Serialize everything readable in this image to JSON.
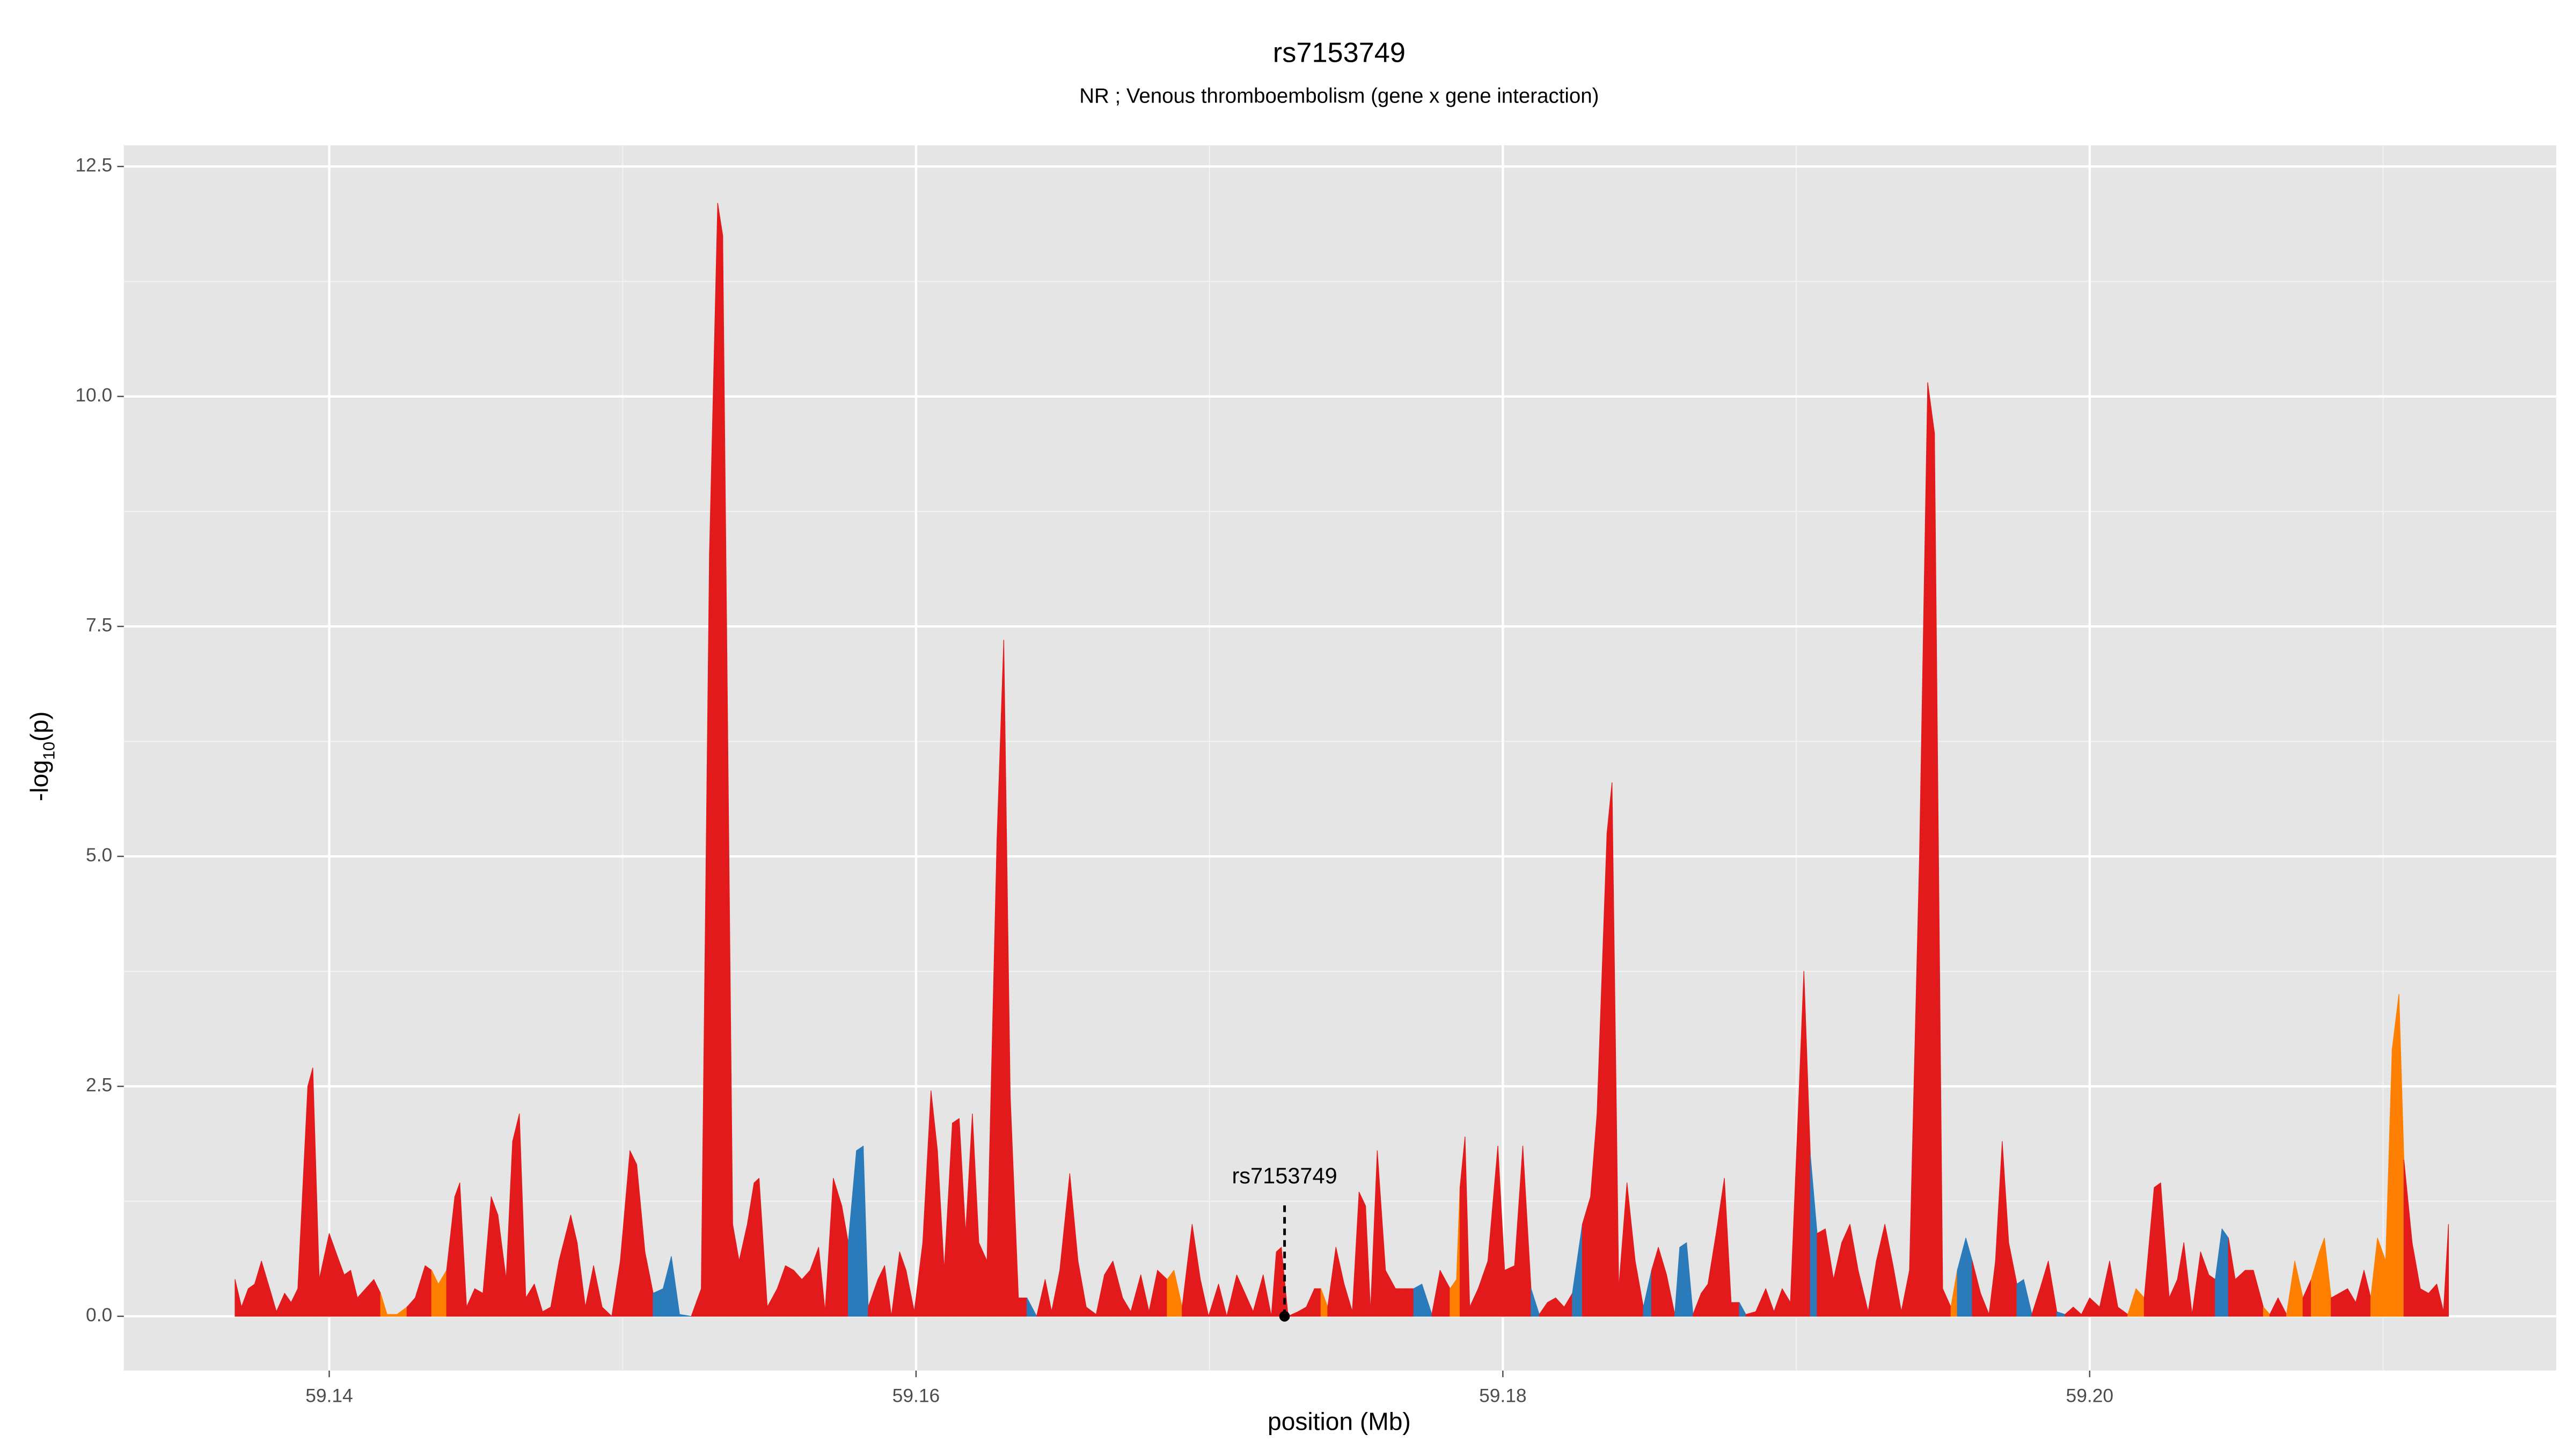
{
  "chart_data": {
    "type": "area",
    "title": "rs7153749",
    "subtitle": "NR ; Venous thromboembolism (gene x gene interaction)",
    "xlabel": "position (Mb)",
    "ylabel": [
      "-log",
      "10",
      "(p)"
    ],
    "xlim": [
      59.133,
      59.2159
    ],
    "ylim": [
      -0.59,
      12.73
    ],
    "xticks": [
      59.14,
      59.16,
      59.18,
      {
        "value": 59.2,
        "label": "59.20"
      }
    ],
    "yticks": [
      {
        "value": 0,
        "label": "0.0"
      },
      2.5,
      {
        "value": 5,
        "label": "5.0"
      },
      7.5,
      {
        "value": 10,
        "label": "10.0"
      },
      12.5
    ],
    "minor_xticks": [
      59.15,
      59.17,
      59.19,
      59.21
    ],
    "minor_yticks": [
      1.25,
      3.75,
      6.25,
      8.75,
      11.25
    ],
    "grid": true,
    "annotation": {
      "label": "rs7153749",
      "x": 59.17256,
      "y": 0
    },
    "x": [
      59.13679,
      59.13701,
      59.13724,
      59.13746,
      59.13769,
      59.13797,
      59.1382,
      59.13848,
      59.1387,
      59.13893,
      59.13927,
      59.13944,
      59.13966,
      59.14,
      59.14028,
      59.14051,
      59.14073,
      59.14096,
      59.14124,
      59.14152,
      59.14175,
      59.14197,
      59.14231,
      59.14265,
      59.14293,
      59.14327,
      59.14349,
      59.14372,
      59.144,
      59.14428,
      59.14445,
      59.14468,
      59.14496,
      59.14524,
      59.14552,
      59.14575,
      59.14603,
      59.14625,
      59.14648,
      59.1467,
      59.14699,
      59.14727,
      59.14755,
      59.14783,
      59.14823,
      59.14845,
      59.14873,
      59.14901,
      59.1493,
      59.14963,
      59.14992,
      59.15025,
      59.15048,
      59.15076,
      59.15104,
      59.15138,
      59.15166,
      59.15194,
      59.15234,
      59.15268,
      59.15296,
      59.15324,
      59.15341,
      59.15375,
      59.15397,
      59.15425,
      59.15448,
      59.15465,
      59.15493,
      59.15527,
      59.15555,
      59.15583,
      59.15611,
      59.15639,
      59.15668,
      59.1569,
      59.15718,
      59.15747,
      59.15769,
      59.15797,
      59.1582,
      59.15837,
      59.1587,
      59.15893,
      59.15916,
      59.15944,
      59.15966,
      59.15994,
      59.16023,
      59.16051,
      59.16073,
      59.16096,
      59.16124,
      59.16147,
      59.16169,
      59.16192,
      59.16214,
      59.16242,
      59.16276,
      59.16299,
      59.16321,
      59.16349,
      59.16378,
      59.16411,
      59.1644,
      59.16462,
      59.1649,
      59.16524,
      59.16552,
      59.1658,
      59.16614,
      59.16642,
      59.16671,
      59.16704,
      59.16732,
      59.16766,
      59.16794,
      59.16823,
      59.16856,
      59.16879,
      59.16907,
      59.16941,
      59.16969,
      59.16997,
      59.17031,
      59.17059,
      59.17093,
      59.17121,
      59.17149,
      59.17183,
      59.17211,
      59.17228,
      59.17245,
      59.17268,
      59.17302,
      59.1733,
      59.17358,
      59.1738,
      59.17403,
      59.17431,
      59.17459,
      59.17487,
      59.1751,
      59.17532,
      59.17549,
      59.17572,
      59.176,
      59.17634,
      59.17668,
      59.17696,
      59.17724,
      59.17758,
      59.17786,
      59.1782,
      59.17842,
      59.17854,
      59.17871,
      59.17887,
      59.17916,
      59.17949,
      59.17983,
      59.18006,
      59.1804,
      59.18068,
      59.18096,
      59.18124,
      59.18152,
      59.1818,
      59.18209,
      59.18237,
      59.18271,
      59.18299,
      59.18321,
      59.18355,
      59.18372,
      59.18395,
      59.18423,
      59.18451,
      59.18479,
      59.18507,
      59.1853,
      59.18558,
      59.18586,
      59.18603,
      59.18626,
      59.18648,
      59.18676,
      59.18699,
      59.18727,
      59.18755,
      59.18778,
      59.18806,
      59.18828,
      59.18862,
      59.18896,
      59.18924,
      59.18952,
      59.1898,
      59.19009,
      59.19026,
      59.19048,
      59.19071,
      59.19099,
      59.19127,
      59.19155,
      59.19183,
      59.19211,
      59.19245,
      59.19273,
      59.19302,
      59.1933,
      59.19358,
      59.19386,
      59.1942,
      59.19448,
      59.19471,
      59.19499,
      59.19527,
      59.19549,
      59.19578,
      59.196,
      59.19628,
      59.19657,
      59.19679,
      59.19702,
      59.19724,
      59.19752,
      59.19775,
      59.19803,
      59.19831,
      59.19859,
      59.19888,
      59.19916,
      59.19944,
      59.19972,
      59.2,
      59.20034,
      59.20068,
      59.20096,
      59.2013,
      59.20158,
      59.20186,
      59.2022,
      59.20242,
      59.20271,
      59.20299,
      59.20321,
      59.20349,
      59.20378,
      59.20406,
      59.20428,
      59.20451,
      59.20473,
      59.20496,
      59.2053,
      59.20558,
      59.20592,
      59.20614,
      59.20642,
      59.20671,
      59.20699,
      59.20727,
      59.20755,
      59.20783,
      59.208,
      59.20823,
      59.20851,
      59.20879,
      59.20907,
      59.20935,
      59.20958,
      59.20981,
      59.21009,
      59.21031,
      59.21054,
      59.21071,
      59.21099,
      59.21127,
      59.21155,
      59.21183,
      59.21206,
      59.21223
    ],
    "values": [
      0.4,
      0.1,
      0.3,
      0.35,
      0.6,
      0.3,
      0.05,
      0.25,
      0.15,
      0.3,
      2.5,
      2.7,
      0.4,
      0.9,
      0.65,
      0.45,
      0.5,
      0.2,
      0.3,
      0.4,
      0.25,
      0.02,
      0.02,
      0.1,
      0.2,
      0.55,
      0.5,
      0.35,
      0.5,
      1.3,
      1.45,
      0.1,
      0.3,
      0.25,
      1.3,
      1.1,
      0.4,
      1.9,
      2.2,
      0.2,
      0.35,
      0.05,
      0.1,
      0.6,
      1.1,
      0.8,
      0.1,
      0.55,
      0.1,
      0,
      0.6,
      1.8,
      1.65,
      0.7,
      0.25,
      0.3,
      0.65,
      0.02,
      0,
      0.3,
      8.3,
      12.1,
      11.75,
      1,
      0.6,
      1,
      1.45,
      1.5,
      0.1,
      0.3,
      0.55,
      0.5,
      0.4,
      0.5,
      0.75,
      0.05,
      1.5,
      1.2,
      0.8,
      1.8,
      1.85,
      0.1,
      0.4,
      0.55,
      0,
      0.7,
      0.5,
      0.05,
      0.8,
      2.45,
      1.8,
      0.5,
      2.1,
      2.15,
      0.9,
      2.2,
      0.8,
      0.6,
      5.2,
      7.35,
      2.4,
      0.2,
      0.2,
      0,
      0.4,
      0.05,
      0.5,
      1.55,
      0.6,
      0.1,
      0.02,
      0.45,
      0.6,
      0.2,
      0.05,
      0.45,
      0.05,
      0.5,
      0.4,
      0.5,
      0.1,
      1,
      0.4,
      0,
      0.35,
      0,
      0.45,
      0.25,
      0.05,
      0.45,
      0,
      0.7,
      0.75,
      0,
      0.05,
      0.1,
      0.3,
      0.3,
      0.1,
      0.75,
      0.35,
      0.05,
      1.35,
      1.2,
      0.05,
      1.8,
      0.5,
      0.3,
      0.3,
      0.3,
      0.35,
      0.02,
      0.5,
      0.3,
      0.4,
      1.4,
      1.95,
      0.1,
      0.3,
      0.6,
      1.85,
      0.5,
      0.55,
      1.85,
      0.3,
      0.02,
      0.15,
      0.2,
      0.1,
      0.25,
      1,
      1.3,
      2.2,
      5.25,
      5.8,
      0.3,
      1.45,
      0.6,
      0.1,
      0.5,
      0.75,
      0.45,
      0.02,
      0.75,
      0.8,
      0.02,
      0.25,
      0.35,
      0.9,
      1.5,
      0.15,
      0.15,
      0.02,
      0.05,
      0.3,
      0.05,
      0.3,
      0.15,
      2.4,
      3.75,
      1.75,
      0.9,
      0.95,
      0.4,
      0.8,
      1,
      0.5,
      0.05,
      0.6,
      1,
      0.55,
      0.05,
      0.5,
      5,
      10.15,
      9.6,
      0.3,
      0.1,
      0.5,
      0.85,
      0.6,
      0.25,
      0.02,
      0.6,
      1.9,
      0.8,
      0.35,
      0.4,
      0.02,
      0.3,
      0.6,
      0.05,
      0.02,
      0.1,
      0.02,
      0.2,
      0.1,
      0.6,
      0.1,
      0.02,
      0.3,
      0.2,
      1.4,
      1.45,
      0.2,
      0.4,
      0.8,
      0.02,
      0.7,
      0.45,
      0.4,
      0.95,
      0.85,
      0.4,
      0.5,
      0.5,
      0.1,
      0.02,
      0.2,
      0.02,
      0.6,
      0.2,
      0.4,
      0.7,
      0.85,
      0.2,
      0.25,
      0.3,
      0.15,
      0.5,
      0.2,
      0.85,
      0.6,
      2.9,
      3.5,
      1.7,
      0.8,
      0.3,
      0.25,
      0.35,
      0.05,
      1
    ],
    "fill_colors": [
      "#e31a1c",
      "#e31a1c",
      "#e31a1c",
      "#e31a1c",
      "#e31a1c",
      "#e31a1c",
      "#e31a1c",
      "#e31a1c",
      "#e31a1c",
      "#e31a1c",
      "#e31a1c",
      "#e31a1c",
      "#e31a1c",
      "#e31a1c",
      "#e31a1c",
      "#e31a1c",
      "#e31a1c",
      "#e31a1c",
      "#e31a1c",
      "#e31a1c",
      "#ff7f00",
      "#ff7f00",
      "#ff7f00",
      "#ff7f00",
      "#e31a1c",
      "#e31a1c",
      "#ff7f00",
      "#ff7f00",
      "#ff7f00",
      "#e31a1c",
      "#e31a1c",
      "#e31a1c",
      "#e31a1c",
      "#e31a1c",
      "#e31a1c",
      "#e31a1c",
      "#e31a1c",
      "#e31a1c",
      "#e31a1c",
      "#e31a1c",
      "#e31a1c",
      "#e31a1c",
      "#e31a1c",
      "#e31a1c",
      "#e31a1c",
      "#e31a1c",
      "#e31a1c",
      "#e31a1c",
      "#e31a1c",
      "#e31a1c",
      "#e31a1c",
      "#e31a1c",
      "#e31a1c",
      "#e31a1c",
      "#2b7bba",
      "#2b7bba",
      "#2b7bba",
      "#2b7bba",
      "#e31a1c",
      "#e31a1c",
      "#e31a1c",
      "#e31a1c",
      "#e31a1c",
      "#e31a1c",
      "#e31a1c",
      "#e31a1c",
      "#e31a1c",
      "#e31a1c",
      "#e31a1c",
      "#e31a1c",
      "#e31a1c",
      "#e31a1c",
      "#e31a1c",
      "#e31a1c",
      "#e31a1c",
      "#e31a1c",
      "#e31a1c",
      "#e31a1c",
      "#e31a1c",
      "#2b7bba",
      "#2b7bba",
      "#e31a1c",
      "#e31a1c",
      "#e31a1c",
      "#e31a1c",
      "#e31a1c",
      "#e31a1c",
      "#e31a1c",
      "#e31a1c",
      "#e31a1c",
      "#e31a1c",
      "#e31a1c",
      "#e31a1c",
      "#e31a1c",
      "#e31a1c",
      "#e31a1c",
      "#e31a1c",
      "#e31a1c",
      "#e31a1c",
      "#e31a1c",
      "#e31a1c",
      "#e31a1c",
      "#2b7bba",
      "#2b7bba",
      "#e31a1c",
      "#e31a1c",
      "#e31a1c",
      "#e31a1c",
      "#e31a1c",
      "#e31a1c",
      "#e31a1c",
      "#e31a1c",
      "#e31a1c",
      "#e31a1c",
      "#e31a1c",
      "#e31a1c",
      "#e31a1c",
      "#e31a1c",
      "#ff7f00",
      "#ff7f00",
      "#e31a1c",
      "#e31a1c",
      "#e31a1c",
      "#e31a1c",
      "#e31a1c",
      "#e31a1c",
      "#e31a1c",
      "#e31a1c",
      "#e31a1c",
      "#e31a1c",
      "#e31a1c",
      "#e31a1c",
      "#e31a1c",
      "#e31a1c",
      "#e31a1c",
      "#e31a1c",
      "#e31a1c",
      "#ff7f00",
      "#e31a1c",
      "#e31a1c",
      "#e31a1c",
      "#e31a1c",
      "#e31a1c",
      "#e31a1c",
      "#e31a1c",
      "#e31a1c",
      "#e31a1c",
      "#e31a1c",
      "#e31a1c",
      "#2b7bba",
      "#2b7bba",
      "#ff7f00",
      "#e31a1c",
      "#e31a1c",
      "#ff7f00",
      "#ff7f00",
      "#e31a1c",
      "#e31a1c",
      "#e31a1c",
      "#e31a1c",
      "#e31a1c",
      "#e31a1c",
      "#e31a1c",
      "#e31a1c",
      "#2b7bba",
      "#e31a1c",
      "#e31a1c",
      "#e31a1c",
      "#e31a1c",
      "#e31a1c",
      "#2b7bba",
      "#e31a1c",
      "#e31a1c",
      "#e31a1c",
      "#e31a1c",
      "#e31a1c",
      "#e31a1c",
      "#e31a1c",
      "#e31a1c",
      "#2b7bba",
      "#e31a1c",
      "#e31a1c",
      "#e31a1c",
      "#2b7bba",
      "#2b7bba",
      "#e31a1c",
      "#e31a1c",
      "#e31a1c",
      "#e31a1c",
      "#e31a1c",
      "#e31a1c",
      "#2b7bba",
      "#e31a1c",
      "#e31a1c",
      "#e31a1c",
      "#e31a1c",
      "#e31a1c",
      "#e31a1c",
      "#e31a1c",
      "#e31a1c",
      "#2b7bba",
      "#e31a1c",
      "#e31a1c",
      "#e31a1c",
      "#e31a1c",
      "#e31a1c",
      "#e31a1c",
      "#e31a1c",
      "#e31a1c",
      "#e31a1c",
      "#e31a1c",
      "#e31a1c",
      "#e31a1c",
      "#e31a1c",
      "#e31a1c",
      "#e31a1c",
      "#e31a1c",
      "#e31a1c",
      "#ff7f00",
      "#2b7bba",
      "#e31a1c",
      "#e31a1c",
      "#e31a1c",
      "#e31a1c",
      "#e31a1c",
      "#e31a1c",
      "#e31a1c",
      "#2b7bba",
      "#e31a1c",
      "#e31a1c",
      "#e31a1c",
      "#2b7bba",
      "#e31a1c",
      "#e31a1c",
      "#e31a1c",
      "#e31a1c",
      "#e31a1c",
      "#e31a1c",
      "#e31a1c",
      "#e31a1c",
      "#ff7f00",
      "#ff7f00",
      "#e31a1c",
      "#e31a1c",
      "#e31a1c",
      "#e31a1c",
      "#e31a1c",
      "#e31a1c",
      "#e31a1c",
      "#e31a1c",
      "#e31a1c",
      "#2b7bba",
      "#e31a1c",
      "#ff7f00",
      "#e31a1c",
      "#e31a1c",
      "#ff7f00",
      "#e31a1c",
      "#e31a1c",
      "#e31a1c",
      "#ff7f00",
      "#e31a1c",
      "#e31a1c",
      "#ff7f00",
      "#ff7f00",
      "#e31a1c",
      "#e31a1c",
      "#e31a1c",
      "#e31a1c",
      "#e31a1c",
      "#e31a1c",
      "#ff7f00",
      "#ff7f00",
      "#ff7f00",
      "#ff7f00",
      "#e31a1c",
      "#e31a1c",
      "#e31a1c",
      "#e31a1c",
      "#e31a1c",
      "#e31a1c",
      "#e31a1c"
    ]
  }
}
